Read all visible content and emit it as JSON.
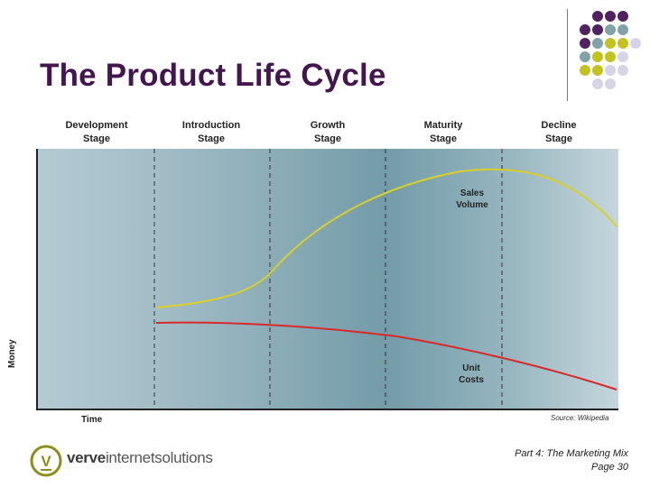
{
  "slide": {
    "title": "The Product Life Cycle",
    "footer": {
      "line1": "Part 4: The Marketing Mix",
      "line2": "Page 30"
    }
  },
  "logo": {
    "brand_bold": "verve",
    "brand_rest": "internetsolutions",
    "mark": "V"
  },
  "colors": {
    "title": "#44164f",
    "sales_curve": "#d8cf2a",
    "cost_curve": "#d82a2a",
    "dot_purple": "#4e2360",
    "dot_teal": "#7fa3a8",
    "dot_yellow": "#c3c320",
    "dot_lavender": "#d6d4e6",
    "logo_green": "#8c8f1c"
  },
  "diagram": {
    "stages": [
      {
        "line1": "Development",
        "line2": "Stage"
      },
      {
        "line1": "Introduction",
        "line2": "Stage"
      },
      {
        "line1": "Growth",
        "line2": "Stage"
      },
      {
        "line1": "Maturity",
        "line2": "Stage"
      },
      {
        "line1": "Decline",
        "line2": "Stage"
      }
    ],
    "y_axis_label": "Money",
    "x_axis_label": "Time",
    "source": "Source: Wikipedia",
    "sales_label": {
      "line1": "Sales",
      "line2": "Volume"
    },
    "cost_label": {
      "line1": "Unit",
      "line2": "Costs"
    }
  }
}
